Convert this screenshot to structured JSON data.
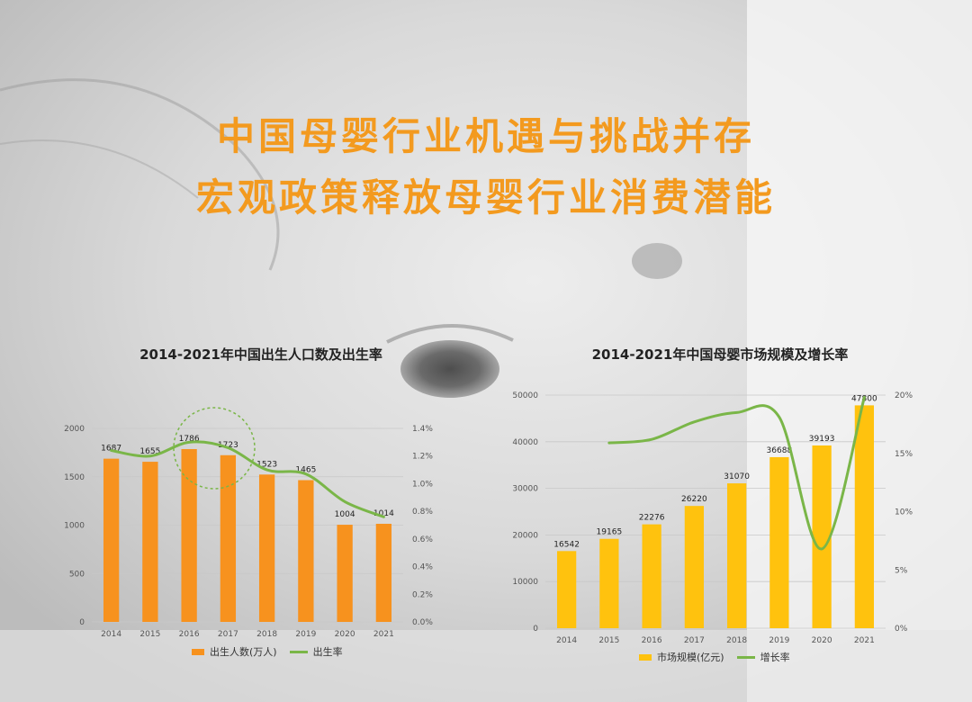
{
  "header": {
    "line1": "中国母婴行业机遇与挑战并存",
    "line2": "宏观政策释放母婴行业消费潜能"
  },
  "legend": {
    "births_label": "出生人数(万人)",
    "birthrate_label": "出生率",
    "market_label": "市场规模(亿元)",
    "growth_label": "增长率"
  },
  "colors": {
    "accent": "#f39a1f",
    "bar1": "#f7921e",
    "bar2": "#ffc20e",
    "line": "#7ab648"
  },
  "chart_data": [
    {
      "type": "bar",
      "title": "2014-2021年中国出生人口数及出生率",
      "categories": [
        "2014",
        "2015",
        "2016",
        "2017",
        "2018",
        "2019",
        "2020",
        "2021"
      ],
      "series": [
        {
          "name": "出生人数(万人)",
          "type": "bar",
          "axis": "left",
          "values": [
            1687,
            1655,
            1786,
            1723,
            1523,
            1465,
            1004,
            1014
          ]
        },
        {
          "name": "出生率",
          "type": "line",
          "axis": "right",
          "values": [
            1.24,
            1.2,
            1.3,
            1.26,
            1.1,
            1.07,
            0.87,
            0.76
          ]
        }
      ],
      "ylim_left": [
        0,
        2000
      ],
      "yticks_left": [
        "0",
        "500",
        "1000",
        "1500",
        "2000"
      ],
      "ylim_right": [
        0,
        1.4
      ],
      "yticks_right": [
        "0.0%",
        "0.2%",
        "0.4%",
        "0.6%",
        "0.8%",
        "1.0%",
        "1.2%",
        "1.4%"
      ],
      "data_labels": [
        "1687",
        "1655",
        "1786",
        "1723",
        "1523",
        "1465",
        "1004",
        "1014"
      ],
      "legend_position": "bottom",
      "grid": true
    },
    {
      "type": "bar",
      "title": "2014-2021年中国母婴市场规模及增长率",
      "categories": [
        "2014",
        "2015",
        "2016",
        "2017",
        "2018",
        "2019",
        "2020",
        "2021"
      ],
      "series": [
        {
          "name": "市场规模(亿元)",
          "type": "bar",
          "axis": "left",
          "values": [
            16542,
            19165,
            22276,
            26220,
            31070,
            36688,
            39193,
            47800
          ]
        },
        {
          "name": "增长率",
          "type": "line",
          "axis": "right",
          "values": [
            null,
            15.9,
            16.2,
            17.7,
            18.5,
            18.1,
            6.8,
            19.8
          ]
        }
      ],
      "ylim_left": [
        0,
        50000
      ],
      "yticks_left": [
        "0",
        "10000",
        "20000",
        "30000",
        "40000",
        "50000"
      ],
      "ylim_right": [
        0,
        20
      ],
      "yticks_right": [
        "0%",
        "5%",
        "10%",
        "15%",
        "20%"
      ],
      "data_labels": [
        "16542",
        "19165",
        "22276",
        "26220",
        "31070",
        "36688",
        "39193",
        "47800"
      ],
      "legend_position": "bottom",
      "grid": true
    }
  ]
}
